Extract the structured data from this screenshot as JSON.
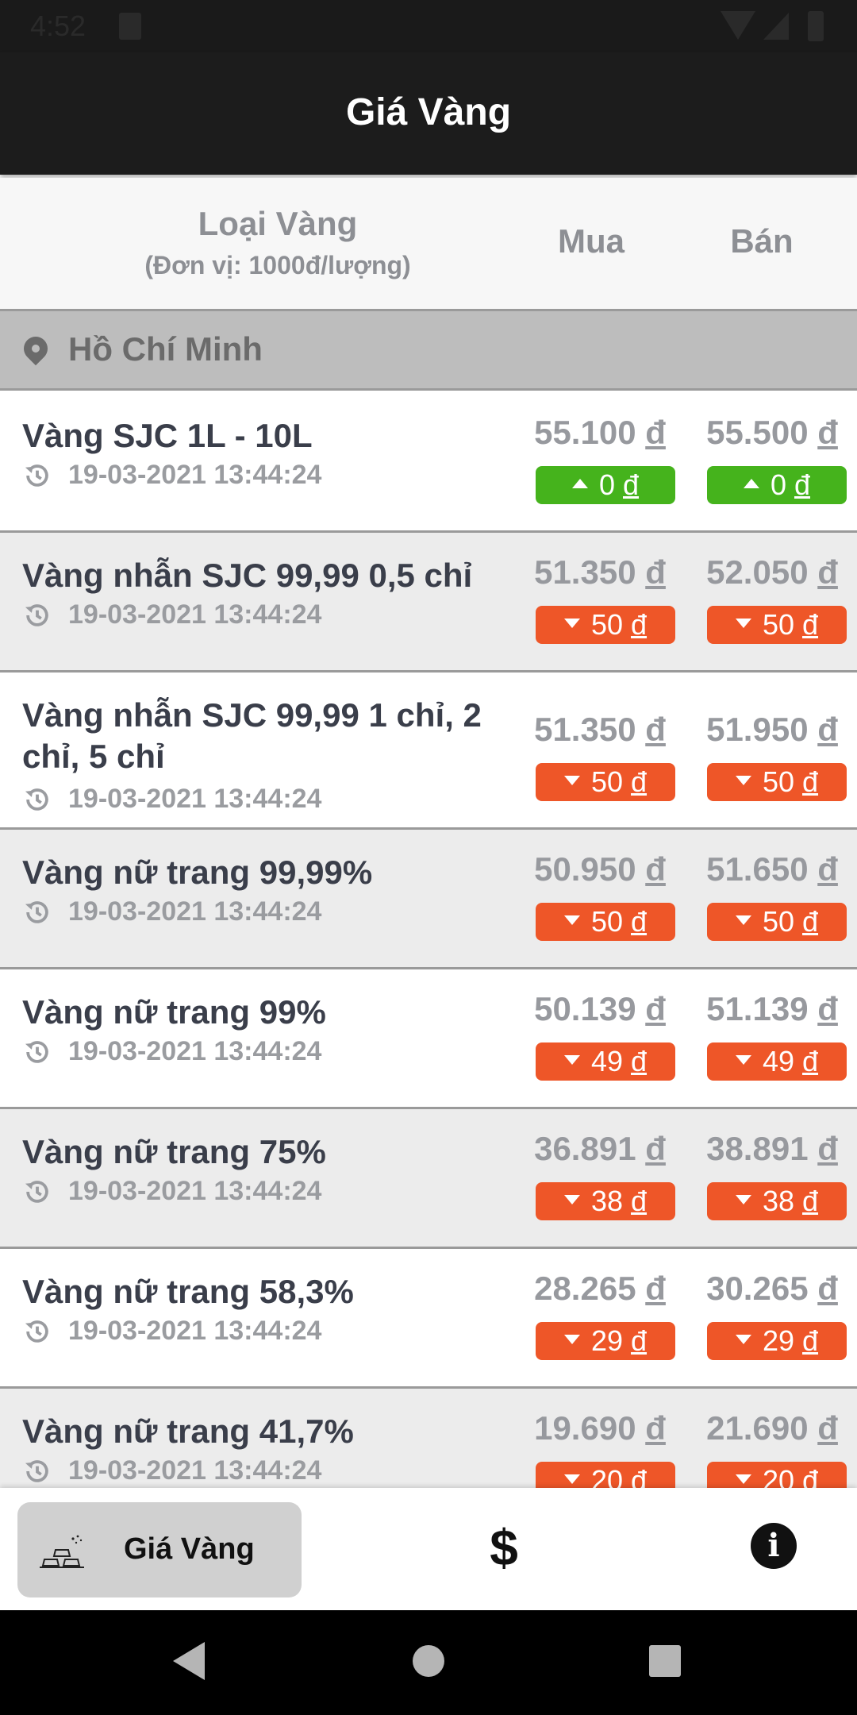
{
  "status_bar": {
    "time": "4:52"
  },
  "app_bar": {
    "title": "Giá Vàng"
  },
  "table_header": {
    "type_label": "Loại Vàng",
    "unit_label": "(Đơn vị: 1000đ/lượng)",
    "buy_label": "Mua",
    "sell_label": "Bán"
  },
  "region": {
    "name": "Hồ Chí Minh"
  },
  "currency_symbol": "đ",
  "rows": [
    {
      "name": "Vàng SJC 1L - 10L",
      "time": "19-03-2021 13:44:24",
      "buy": "55.100",
      "sell": "55.500",
      "buy_change": "0",
      "sell_change": "0",
      "direction": "up"
    },
    {
      "name": "Vàng nhẫn SJC 99,99 0,5 chỉ",
      "time": "19-03-2021 13:44:24",
      "buy": "51.350",
      "sell": "52.050",
      "buy_change": "50",
      "sell_change": "50",
      "direction": "down"
    },
    {
      "name": "Vàng nhẫn SJC 99,99 1 chỉ, 2 chỉ, 5 chỉ",
      "time": "19-03-2021 13:44:24",
      "buy": "51.350",
      "sell": "51.950",
      "buy_change": "50",
      "sell_change": "50",
      "direction": "down"
    },
    {
      "name": "Vàng nữ trang 99,99%",
      "time": "19-03-2021 13:44:24",
      "buy": "50.950",
      "sell": "51.650",
      "buy_change": "50",
      "sell_change": "50",
      "direction": "down"
    },
    {
      "name": "Vàng nữ trang 99%",
      "time": "19-03-2021 13:44:24",
      "buy": "50.139",
      "sell": "51.139",
      "buy_change": "49",
      "sell_change": "49",
      "direction": "down"
    },
    {
      "name": "Vàng nữ trang 75%",
      "time": "19-03-2021 13:44:24",
      "buy": "36.891",
      "sell": "38.891",
      "buy_change": "38",
      "sell_change": "38",
      "direction": "down"
    },
    {
      "name": "Vàng nữ trang 58,3%",
      "time": "19-03-2021 13:44:24",
      "buy": "28.265",
      "sell": "30.265",
      "buy_change": "29",
      "sell_change": "29",
      "direction": "down"
    },
    {
      "name": "Vàng nữ trang 41,7%",
      "time": "19-03-2021 13:44:24",
      "buy": "19.690",
      "sell": "21.690",
      "buy_change": "20",
      "sell_change": "20",
      "direction": "down"
    }
  ],
  "bottom_nav": {
    "gold_label": "Giá Vàng",
    "dollar_symbol": "$",
    "info_symbol": "i"
  },
  "colors": {
    "up": "#45b31c",
    "down": "#ee5628",
    "app_bar": "#1c1c1c",
    "region_bar": "#bdbdbd"
  },
  "icons": {
    "location": "pin-icon",
    "timestamp": "history-clock-icon",
    "gold_tab": "gold-bars-icon",
    "currency_tab": "dollar-icon",
    "info_tab": "info-icon"
  }
}
